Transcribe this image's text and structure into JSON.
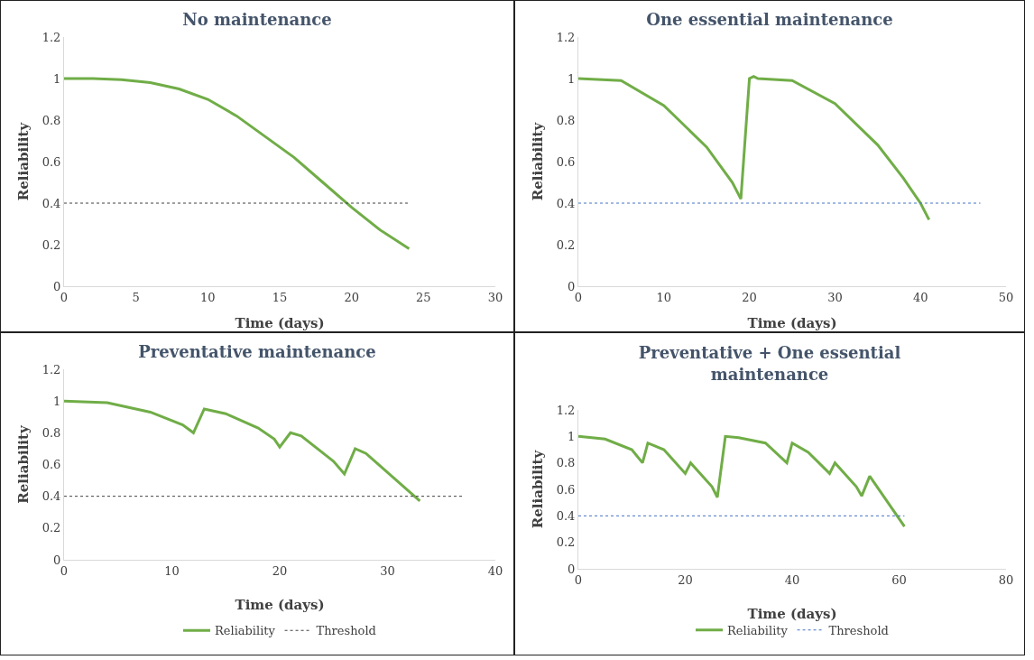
{
  "chart_data": [
    {
      "type": "line",
      "title": "No maintenance",
      "xlabel": "Time (days)",
      "ylabel": "Reliability",
      "xlim": [
        0,
        30
      ],
      "xticks": [
        0,
        5,
        10,
        15,
        20,
        25,
        30
      ],
      "ylim": [
        0,
        1.2
      ],
      "yticks": [
        0,
        0.2,
        0.4,
        0.6,
        0.8,
        1,
        1.2
      ],
      "grid": false,
      "legend": false,
      "marker": "none",
      "series": [
        {
          "color": "#70ad47",
          "line_style": "solid",
          "x": [
            0,
            2,
            4,
            6,
            8,
            10,
            12,
            14,
            16,
            18,
            20,
            22,
            24
          ],
          "values": [
            1,
            1,
            0.995,
            0.98,
            0.95,
            0.9,
            0.82,
            0.72,
            0.62,
            0.5,
            0.38,
            0.27,
            0.18
          ]
        },
        {
          "color": "#404040",
          "line_style": "dotted",
          "x": [
            0,
            24
          ],
          "values": [
            0.4,
            0.4
          ]
        }
      ]
    },
    {
      "type": "line",
      "title": "One essential maintenance",
      "xlabel": "Time (days)",
      "ylabel": "Reliability",
      "xlim": [
        0,
        50
      ],
      "xticks": [
        0,
        10,
        20,
        30,
        40,
        50
      ],
      "ylim": [
        0,
        1.2
      ],
      "yticks": [
        0,
        0.2,
        0.4,
        0.6,
        0.8,
        1,
        1.2
      ],
      "grid": false,
      "legend": false,
      "marker": "none",
      "series": [
        {
          "color": "#70ad47",
          "line_style": "solid",
          "x": [
            0,
            5,
            10,
            15,
            18,
            19,
            20,
            20.5,
            21,
            25,
            30,
            35,
            38,
            40,
            41
          ],
          "values": [
            1,
            0.99,
            0.87,
            0.67,
            0.5,
            0.42,
            1,
            1.01,
            1,
            0.99,
            0.88,
            0.68,
            0.52,
            0.4,
            0.32
          ]
        },
        {
          "color": "#4472c4",
          "line_style": "dotted",
          "x": [
            0,
            47
          ],
          "values": [
            0.4,
            0.4
          ]
        }
      ]
    },
    {
      "type": "line",
      "title": "Preventative maintenance",
      "xlabel": "Time (days)",
      "ylabel": "Reliability",
      "xlim": [
        0,
        40
      ],
      "xticks": [
        0,
        10,
        20,
        30,
        40
      ],
      "ylim": [
        0,
        1.2
      ],
      "yticks": [
        0,
        0.2,
        0.4,
        0.6,
        0.8,
        1,
        1.2
      ],
      "grid": false,
      "legend": "bottom",
      "marker": "none",
      "series": [
        {
          "name": "Reliability",
          "color": "#70ad47",
          "line_style": "solid",
          "x": [
            0,
            4,
            8,
            11,
            12,
            13,
            15,
            18,
            19.5,
            20,
            21,
            22,
            25,
            26,
            27,
            28,
            33
          ],
          "values": [
            1,
            0.99,
            0.93,
            0.85,
            0.8,
            0.95,
            0.92,
            0.83,
            0.76,
            0.71,
            0.8,
            0.78,
            0.62,
            0.54,
            0.7,
            0.67,
            0.37
          ]
        },
        {
          "name": "Threshold",
          "color": "#404040",
          "line_style": "dotted",
          "x": [
            0,
            37
          ],
          "values": [
            0.4,
            0.4
          ]
        }
      ]
    },
    {
      "type": "line",
      "title": "Preventative + One essential\nmaintenance",
      "xlabel": "Time (days)",
      "ylabel": "Reliability",
      "xlim": [
        0,
        80
      ],
      "xticks": [
        0,
        20,
        40,
        60,
        80
      ],
      "ylim": [
        0,
        1.2
      ],
      "yticks": [
        0,
        0.2,
        0.4,
        0.6,
        0.8,
        1,
        1.2
      ],
      "grid": false,
      "legend": "bottom",
      "marker": "none",
      "series": [
        {
          "name": "Reliability",
          "color": "#70ad47",
          "line_style": "solid",
          "x": [
            0,
            5,
            10,
            12,
            13,
            16,
            20,
            21,
            25,
            26,
            27.5,
            30,
            35,
            39,
            40,
            43,
            47,
            48,
            52,
            53,
            54.5,
            61
          ],
          "values": [
            1,
            0.98,
            0.9,
            0.8,
            0.95,
            0.9,
            0.72,
            0.8,
            0.62,
            0.54,
            1,
            0.99,
            0.95,
            0.8,
            0.95,
            0.88,
            0.72,
            0.8,
            0.62,
            0.55,
            0.7,
            0.32
          ]
        },
        {
          "name": "Threshold",
          "color": "#4472c4",
          "line_style": "dotted",
          "x": [
            0,
            61
          ],
          "values": [
            0.4,
            0.4
          ]
        }
      ]
    }
  ]
}
